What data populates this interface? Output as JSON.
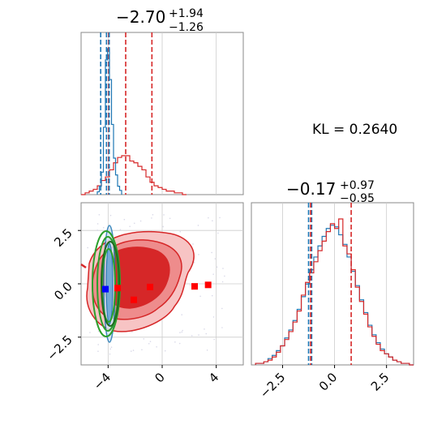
{
  "chart_data": [
    {
      "type": "histogram",
      "panel": "top-left",
      "title": {
        "median": "−2.70",
        "plus": "+1.94",
        "minus": "−1.26"
      },
      "xlim": [
        -6.0,
        6.0
      ],
      "series": [
        {
          "color": "#d62728",
          "edges": [
            -6.0,
            -5.7,
            -5.4,
            -5.1,
            -4.8,
            -4.5,
            -4.2,
            -3.9,
            -3.6,
            -3.3,
            -3.0,
            -2.7,
            -2.4,
            -2.1,
            -1.8,
            -1.5,
            -1.2,
            -0.9,
            -0.6,
            -0.3,
            0.0,
            0.3,
            0.6,
            0.9,
            1.2,
            1.5,
            1.8
          ],
          "counts": [
            0,
            1,
            2,
            3,
            5,
            8,
            10,
            14,
            18,
            21,
            22,
            22,
            19,
            18,
            16,
            14,
            10,
            7,
            5,
            4,
            3,
            2,
            2,
            1,
            1,
            0
          ],
          "quantile_lines": [
            -3.96,
            -2.7,
            -0.76
          ]
        },
        {
          "color": "#1f77b4",
          "edges": [
            -4.8,
            -4.65,
            -4.5,
            -4.35,
            -4.2,
            -4.05,
            -3.9,
            -3.75,
            -3.6,
            -3.45,
            -3.3,
            -3.15,
            -3.0
          ],
          "counts": [
            2,
            6,
            16,
            48,
            96,
            104,
            82,
            50,
            26,
            14,
            6,
            3
          ],
          "quantile_lines": [
            -4.55,
            -4.12,
            -3.92
          ]
        }
      ]
    },
    {
      "type": "scatter",
      "panel": "bottom-left",
      "xlabel": "",
      "ylabel": "",
      "xlim": [
        -6.0,
        6.0
      ],
      "ylim": [
        -3.8,
        3.8
      ],
      "xticks": [
        "−4",
        "0",
        "4"
      ],
      "xtick_values": [
        -4,
        0,
        4
      ],
      "yticks": [
        "2.5",
        "0.0",
        "−2.5"
      ],
      "ytick_values": [
        2.5,
        0.0,
        -2.5
      ],
      "red_markers": [
        {
          "x": -3.3,
          "y": -0.2
        },
        {
          "x": -0.9,
          "y": -0.15
        },
        {
          "x": -2.1,
          "y": -0.75
        },
        {
          "x": 2.4,
          "y": -0.12
        },
        {
          "x": 3.4,
          "y": -0.05
        }
      ],
      "blue_markers": [
        {
          "x": -4.2,
          "y": -0.25
        }
      ]
    },
    {
      "type": "histogram",
      "panel": "bottom-right",
      "title": {
        "median": "−0.17",
        "plus": "+0.97",
        "minus": "−0.95"
      },
      "xlim": [
        -4.0,
        3.8
      ],
      "xticks": [
        "−2.5",
        "0.0",
        "2.5"
      ],
      "xtick_values": [
        -2.5,
        0.0,
        2.5
      ],
      "series": [
        {
          "color": "#1f77b4",
          "edges": [
            -3.8,
            -3.6,
            -3.4,
            -3.2,
            -3.0,
            -2.8,
            -2.6,
            -2.4,
            -2.2,
            -2.0,
            -1.8,
            -1.6,
            -1.4,
            -1.2,
            -1.0,
            -0.8,
            -0.6,
            -0.4,
            -0.2,
            0.0,
            0.2,
            0.4,
            0.6,
            0.8,
            1.0,
            1.2,
            1.4,
            1.6,
            1.8,
            2.0,
            2.2,
            2.4,
            2.6,
            2.8,
            3.0,
            3.2,
            3.4,
            3.6,
            3.8
          ],
          "counts": [
            1,
            1,
            2,
            4,
            6,
            9,
            12,
            17,
            22,
            28,
            35,
            43,
            51,
            60,
            68,
            75,
            81,
            86,
            88,
            87,
            82,
            76,
            68,
            59,
            50,
            41,
            33,
            25,
            19,
            14,
            10,
            7,
            5,
            3,
            2,
            1,
            1,
            0
          ],
          "quantile_lines": [
            -1.25,
            -1.1
          ]
        },
        {
          "color": "#d62728",
          "edges": [
            -3.8,
            -3.6,
            -3.4,
            -3.2,
            -3.0,
            -2.8,
            -2.6,
            -2.4,
            -2.2,
            -2.0,
            -1.8,
            -1.6,
            -1.4,
            -1.2,
            -1.0,
            -0.8,
            -0.6,
            -0.4,
            -0.2,
            0.0,
            0.2,
            0.4,
            0.6,
            0.8,
            1.0,
            1.2,
            1.4,
            1.6,
            1.8,
            2.0,
            2.2,
            2.4,
            2.6,
            2.8,
            3.0,
            3.2,
            3.4,
            3.6,
            3.8
          ],
          "counts": [
            1,
            1,
            2,
            3,
            5,
            8,
            12,
            16,
            21,
            27,
            34,
            44,
            52,
            58,
            65,
            72,
            78,
            84,
            89,
            86,
            92,
            75,
            70,
            60,
            49,
            40,
            32,
            24,
            18,
            13,
            9,
            7,
            5,
            3,
            2,
            1,
            1,
            0
          ],
          "quantile_lines": [
            -1.15,
            0.8
          ]
        }
      ]
    },
    {
      "type": "annotation",
      "panel": "top-right",
      "text": "KL = 0.2640"
    }
  ]
}
